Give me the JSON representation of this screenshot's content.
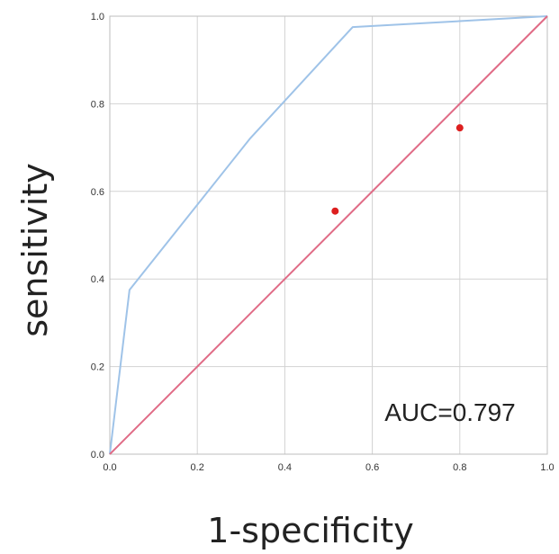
{
  "chart_data": {
    "type": "line",
    "title": "",
    "xlabel": "1-specificity",
    "ylabel": "sensitivity",
    "xlim": [
      0.0,
      1.0
    ],
    "ylim": [
      0.0,
      1.0
    ],
    "x_ticks": [
      "0.0",
      "0.2",
      "0.4",
      "0.6",
      "0.8",
      "1.0"
    ],
    "y_ticks": [
      "0.0",
      "0.2",
      "0.4",
      "0.6",
      "0.8",
      "1.0"
    ],
    "grid": true,
    "legend": "none",
    "annotation": "AUC=0.797",
    "series": [
      {
        "kind": "line",
        "color": "#9fc3e8",
        "x": [
          0.0,
          0.045,
          0.32,
          0.555,
          1.0
        ],
        "y": [
          0.0,
          0.375,
          0.72,
          0.975,
          1.0
        ]
      },
      {
        "kind": "line",
        "color": "#e06b86",
        "x": [
          0.0,
          1.0
        ],
        "y": [
          0.0,
          1.0
        ]
      },
      {
        "kind": "scatter",
        "color": "#dd1f1f",
        "x": [
          0.515,
          0.8
        ],
        "y": [
          0.555,
          0.745
        ]
      }
    ]
  }
}
